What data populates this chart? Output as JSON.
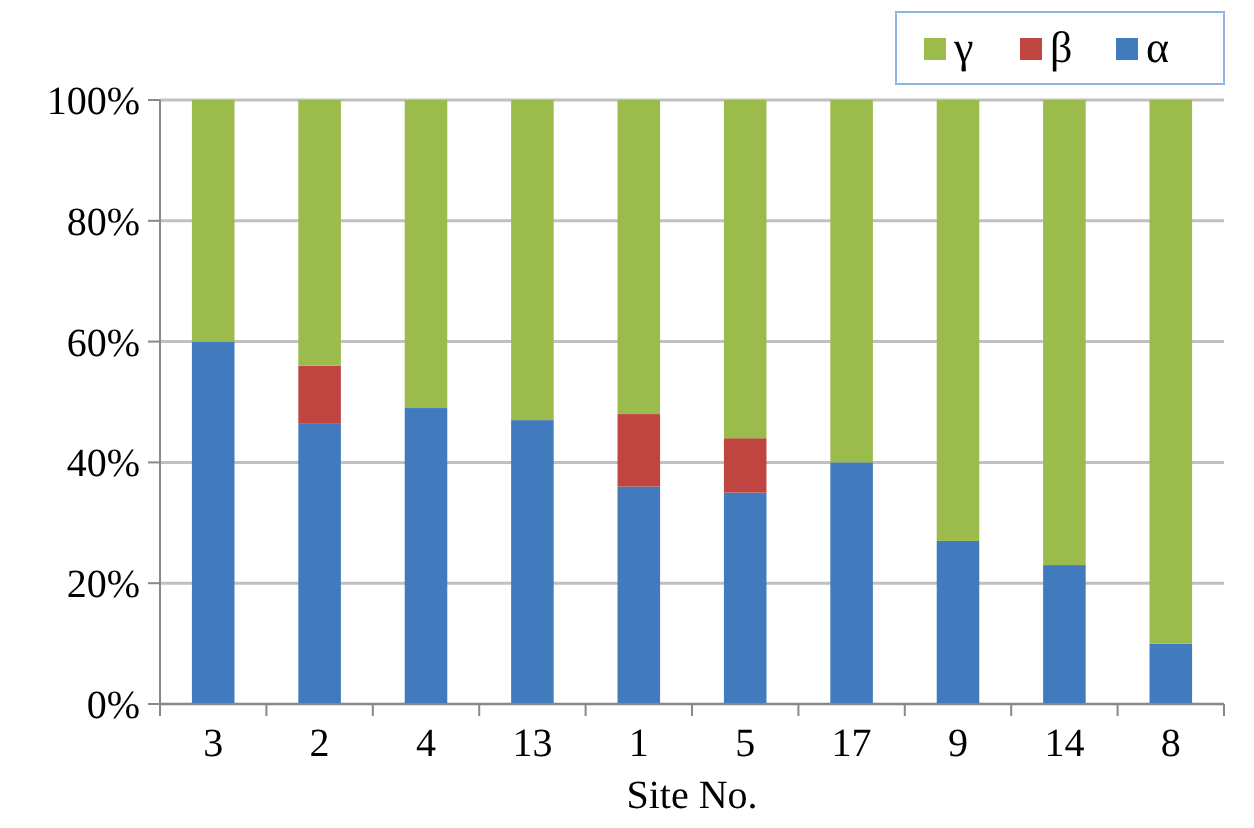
{
  "chart_data": {
    "type": "bar",
    "stacked": true,
    "xlabel": "Site No.",
    "categories": [
      "3",
      "2",
      "4",
      "13",
      "1",
      "5",
      "17",
      "9",
      "14",
      "8"
    ],
    "series": [
      {
        "name": "α",
        "color": "#417bbd",
        "values": [
          60,
          46.5,
          49,
          47,
          36,
          35,
          40,
          27,
          23,
          10
        ]
      },
      {
        "name": "β",
        "color": "#c0443f",
        "values": [
          0,
          9.5,
          0,
          0,
          12,
          9,
          0,
          0,
          0,
          0
        ]
      },
      {
        "name": "γ",
        "color": "#9bbb4d",
        "values": [
          40,
          44,
          51,
          53,
          52,
          56,
          60,
          73,
          77,
          90
        ]
      }
    ],
    "ylim": [
      0,
      100
    ],
    "yticks": [
      {
        "value": 0,
        "label": "0%"
      },
      {
        "value": 20,
        "label": "20%"
      },
      {
        "value": 40,
        "label": "40%"
      },
      {
        "value": 60,
        "label": "60%"
      },
      {
        "value": 80,
        "label": "80%"
      },
      {
        "value": 100,
        "label": "100%"
      }
    ],
    "grid": "y",
    "legend": "top right"
  }
}
